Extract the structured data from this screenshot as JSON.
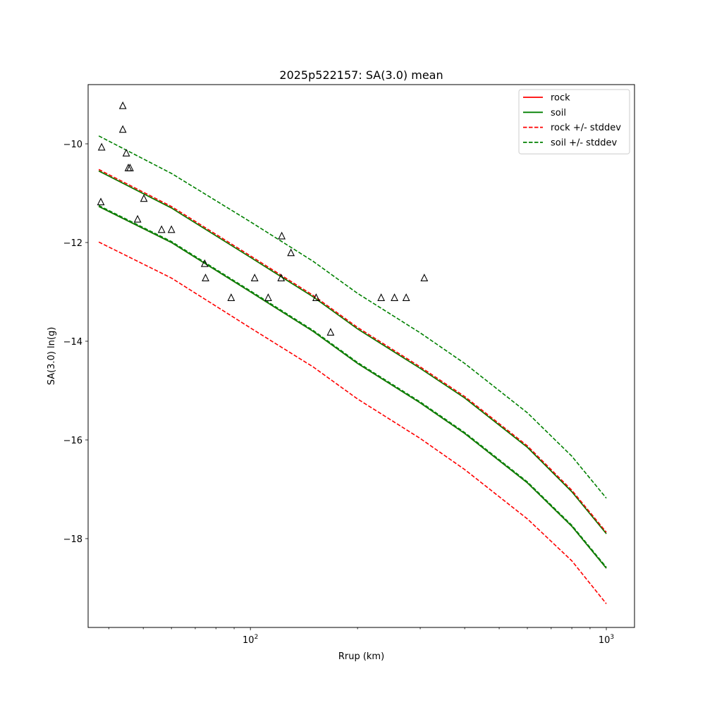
{
  "chart_data": {
    "type": "scatter",
    "title": "2025p522157: SA(3.0) mean",
    "xlabel": "Rrup (km)",
    "ylabel": "SA(3.0) ln(g)",
    "xscale": "log",
    "xlim": [
      35,
      1200
    ],
    "ylim": [
      -19.8,
      -8.8
    ],
    "grid": false,
    "legend_position": "top-right",
    "x_ticks": [
      {
        "value": 100,
        "base": "10",
        "exp": "2"
      },
      {
        "value": 1000,
        "base": "10",
        "exp": "3"
      }
    ],
    "y_ticks": [
      {
        "value": -10,
        "label": "−10"
      },
      {
        "value": -12,
        "label": "−12"
      },
      {
        "value": -14,
        "label": "−14"
      },
      {
        "value": -16,
        "label": "−16"
      },
      {
        "value": -18,
        "label": "−18"
      }
    ],
    "colors": {
      "rock": "#ff0000",
      "soil": "#008000",
      "obs": "#000000"
    },
    "series": [
      {
        "name": "rock",
        "style": "solid",
        "color": "#ff0000",
        "x": [
          37.5,
          60,
          100,
          150,
          200,
          300,
          400,
          600,
          800,
          1000
        ],
        "y": [
          -10.55,
          -11.3,
          -12.3,
          -13.1,
          -13.75,
          -14.55,
          -15.15,
          -16.15,
          -17.05,
          -17.9
        ]
      },
      {
        "name": "soil",
        "style": "solid",
        "color": "#008000",
        "x": [
          37.5,
          60,
          100,
          150,
          200,
          300,
          400,
          600,
          800,
          1000
        ],
        "y": [
          -10.55,
          -11.3,
          -12.3,
          -13.1,
          -13.75,
          -14.55,
          -15.15,
          -16.15,
          -17.05,
          -17.9
        ]
      },
      {
        "style": "solid",
        "color": "#ff0000",
        "legend": false,
        "x": [
          37.5,
          60,
          100,
          150,
          200,
          300,
          400,
          600,
          800,
          1000
        ],
        "y": [
          -11.27,
          -12.0,
          -13.0,
          -13.8,
          -14.45,
          -15.25,
          -15.87,
          -16.87,
          -17.75,
          -18.6
        ]
      },
      {
        "style": "solid",
        "color": "#008000",
        "legend": false,
        "x": [
          37.5,
          60,
          100,
          150,
          200,
          300,
          400,
          600,
          800,
          1000
        ],
        "y": [
          -11.27,
          -12.0,
          -13.0,
          -13.8,
          -14.45,
          -15.25,
          -15.87,
          -16.87,
          -17.75,
          -18.6
        ]
      },
      {
        "name": "rock +/- stddev",
        "style": "dashed",
        "color": "#ff0000",
        "x": [
          37.5,
          60,
          100,
          150,
          200,
          300,
          400,
          600,
          800,
          1000
        ],
        "y": [
          -10.52,
          -11.27,
          -12.27,
          -13.07,
          -13.72,
          -14.52,
          -15.12,
          -16.12,
          -17.02,
          -17.87
        ]
      },
      {
        "style": "dashed",
        "color": "#ff0000",
        "legend": false,
        "x": [
          37.5,
          60,
          100,
          150,
          200,
          300,
          400,
          600,
          800,
          1000
        ],
        "y": [
          -11.99,
          -12.72,
          -13.73,
          -14.52,
          -15.17,
          -15.97,
          -16.6,
          -17.6,
          -18.45,
          -19.32
        ]
      },
      {
        "name": "soil +/- stddev",
        "style": "dashed",
        "color": "#008000",
        "x": [
          37.5,
          60,
          100,
          150,
          200,
          300,
          400,
          600,
          800,
          1000
        ],
        "y": [
          -9.84,
          -10.6,
          -11.58,
          -12.38,
          -13.03,
          -13.83,
          -14.45,
          -15.45,
          -16.33,
          -17.18
        ]
      },
      {
        "style": "dashed",
        "color": "#008000",
        "legend": false,
        "x": [
          37.5,
          60,
          100,
          150,
          200,
          300,
          400,
          600,
          800,
          1000
        ],
        "y": [
          -11.25,
          -11.98,
          -12.98,
          -13.78,
          -14.43,
          -15.23,
          -15.85,
          -16.85,
          -17.73,
          -18.58
        ]
      }
    ],
    "observations": {
      "marker": "triangle",
      "color": "#000000",
      "x": [
        38.2,
        38.0,
        43.8,
        43.8,
        44.8,
        45.4,
        45.9,
        48.2,
        50.2,
        56.3,
        60.0,
        74.4,
        74.8,
        88.3,
        102.8,
        112.2,
        122.5,
        122.0,
        130.0,
        153.0,
        168.0,
        233.0,
        254.0,
        274.0,
        308.0
      ],
      "y": [
        -10.07,
        -11.18,
        -9.23,
        -9.71,
        -10.19,
        -10.49,
        -10.49,
        -11.53,
        -11.11,
        -11.74,
        -11.74,
        -12.43,
        -12.72,
        -13.12,
        -12.72,
        -13.12,
        -11.87,
        -12.72,
        -12.21,
        -13.12,
        -13.82,
        -13.12,
        -13.12,
        -13.12,
        -12.72
      ]
    }
  }
}
